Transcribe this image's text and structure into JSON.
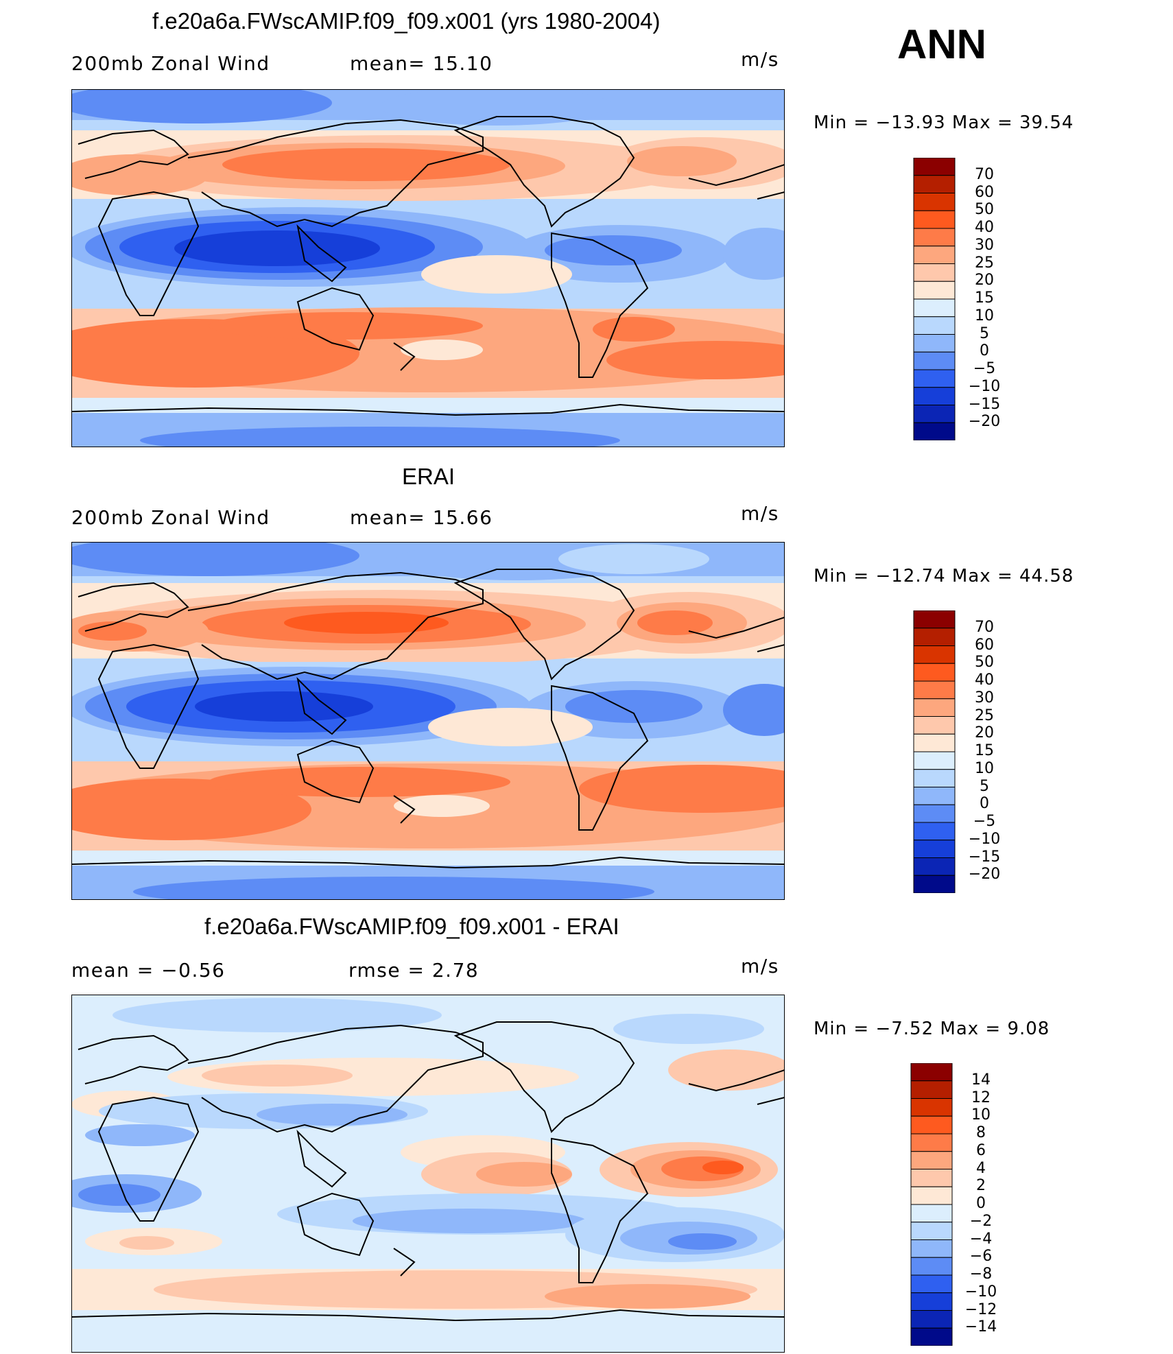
{
  "season": "ANN",
  "color_scales": {
    "abs_levels": [
      "70",
      "60",
      "50",
      "40",
      "30",
      "25",
      "20",
      "15",
      "10",
      "5",
      "0",
      "−5",
      "−10",
      "−15",
      "−20"
    ],
    "abs_colors": [
      "#8b0000",
      "#b41f00",
      "#d93400",
      "#fe5a1f",
      "#fe7b48",
      "#fda77e",
      "#fec8ac",
      "#fee8d6",
      "#dceefd",
      "#b9d8fd",
      "#8fb7fa",
      "#5d8cf5",
      "#2f60f0",
      "#163fd9",
      "#0b25b5",
      "#000a8a"
    ],
    "diff_levels": [
      "14",
      "12",
      "10",
      "8",
      "6",
      "4",
      "2",
      "0",
      "−2",
      "−4",
      "−6",
      "−8",
      "−10",
      "−12",
      "−14"
    ],
    "diff_colors": [
      "#8b0000",
      "#b41f00",
      "#d93400",
      "#fe5a1f",
      "#fe7b48",
      "#fda77e",
      "#fec8ac",
      "#fee8d6",
      "#dceefd",
      "#b9d8fd",
      "#8fb7fa",
      "#5d8cf5",
      "#2f60f0",
      "#163fd9",
      "#0b25b5",
      "#000a8a"
    ]
  },
  "panels": [
    {
      "title": "f.e20a6a.FWscAMIP.f09_f09.x001 (yrs 1980-2004)",
      "left_label": "200mb  Zonal  Wind",
      "middle_label": "mean=   15.10",
      "units": "m/s",
      "minmax": "Min  =  −13.93  Max  =    39.54"
    },
    {
      "title": "ERAI",
      "left_label": "200mb  Zonal  Wind",
      "middle_label": "mean=   15.66",
      "units": "m/s",
      "minmax": "Min  =  −12.74  Max  =    44.58"
    },
    {
      "title": "f.e20a6a.FWscAMIP.f09_f09.x001 - ERAI",
      "left_label": "mean  =    −0.56",
      "middle_label": "rmse  =     2.78",
      "units": "m/s",
      "minmax": "Min  =    −7.52  Max  =     9.08"
    }
  ]
}
